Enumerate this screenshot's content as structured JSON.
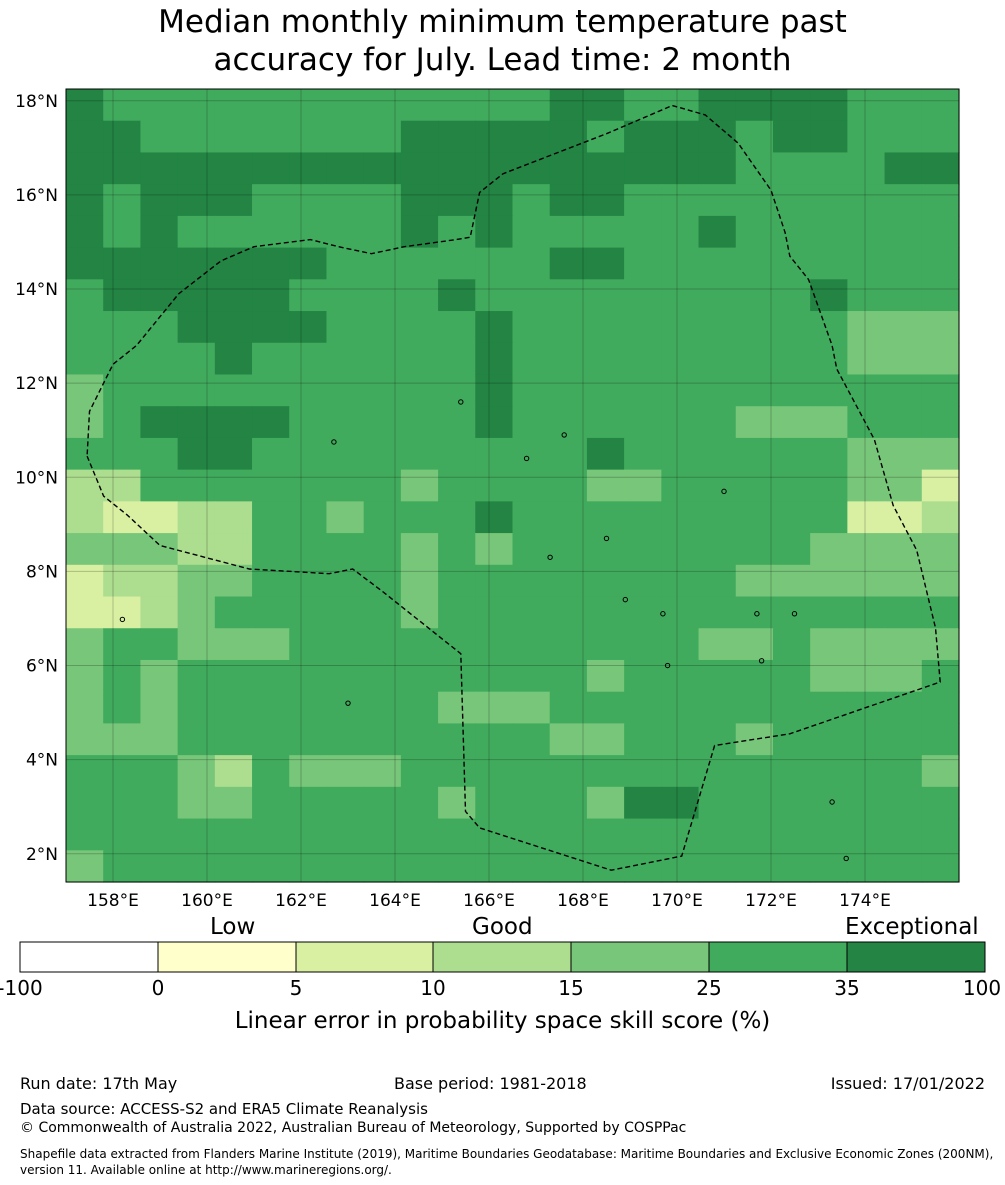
{
  "title": {
    "line1": "Median monthly minimum temperature past",
    "line2": "accuracy for July. Lead time: 2 month"
  },
  "map": {
    "lon_range": [
      157.0,
      176.0
    ],
    "lat_range": [
      1.4,
      18.25
    ],
    "lat_ticks": [
      "18°N",
      "16°N",
      "14°N",
      "12°N",
      "10°N",
      "8°N",
      "6°N",
      "4°N",
      "2°N"
    ],
    "lat_tick_values": [
      18,
      16,
      14,
      12,
      10,
      8,
      6,
      4,
      2
    ],
    "lon_ticks": [
      "158°E",
      "160°E",
      "162°E",
      "164°E",
      "166°E",
      "168°E",
      "170°E",
      "172°E",
      "174°E"
    ],
    "lon_tick_values": [
      158,
      160,
      162,
      164,
      166,
      168,
      170,
      172,
      174
    ],
    "gridlines": true,
    "boundary_style": "dashed black line (EEZ)",
    "cell_size_deg": 0.833,
    "rows_top_to_bottom": [
      "655555555555566556666555",
      "665555555666665666566555",
      "666666666666666666555566",
      "656665555666566555555555",
      "656555555656555556555555",
      "666666655555566555555555",
      "566666555565555555556555",
      "555666655556555555555444",
      "555565555556555555555444",
      "455555555556555555555555",
      "456666555556555555444555",
      "555665555555556555555444",
      "335555555455554455555442",
      "322335545556555555555223",
      "444335555454555555554444",
      "233445555455555555444444",
      "223455555455555555555555",
      "455444555555555554454444",
      "454555555555554555554445",
      "454555555544455555555555",
      "444555555555544555455555",
      "555435444555555555555554",
      "555445555545554665555555",
      "555555555555555555555555",
      "455555555555555555555555"
    ],
    "palette": {
      "0": "#ffffff",
      "1": "#ffffcc",
      "2": "#d9f0a3",
      "3": "#addd8e",
      "4": "#78c679",
      "5": "#41ab5d",
      "6": "#238443"
    }
  },
  "legend": {
    "categories": [
      "Low",
      "Good",
      "Exceptional"
    ],
    "bin_colors": [
      "#ffffff",
      "#ffffcc",
      "#d9f0a3",
      "#addd8e",
      "#78c679",
      "#41ab5d",
      "#238443"
    ],
    "tick_labels": [
      "-100",
      "0",
      "5",
      "10",
      "15",
      "25",
      "35",
      "100"
    ],
    "title": "Linear error in probability space skill score (%)"
  },
  "footer": {
    "run_date": "Run date: 17th May",
    "base_period": "Base period: 1981-2018",
    "issued": "Issued: 17/01/2022",
    "data_source": "Data source: ACCESS-S2 and ERA5 Climate Reanalysis",
    "copyright": "© Commonwealth of Australia 2022, Australian Bureau of Meteorology, Supported by COSPPac",
    "shapefile_line1": "Shapefile data extracted from Flanders Marine Institute (2019), Maritime Boundaries Geodatabase: Maritime Boundaries and Exclusive Economic Zones (200NM),",
    "shapefile_line2": "version 11. Available online at http://www.marineregions.org/."
  }
}
